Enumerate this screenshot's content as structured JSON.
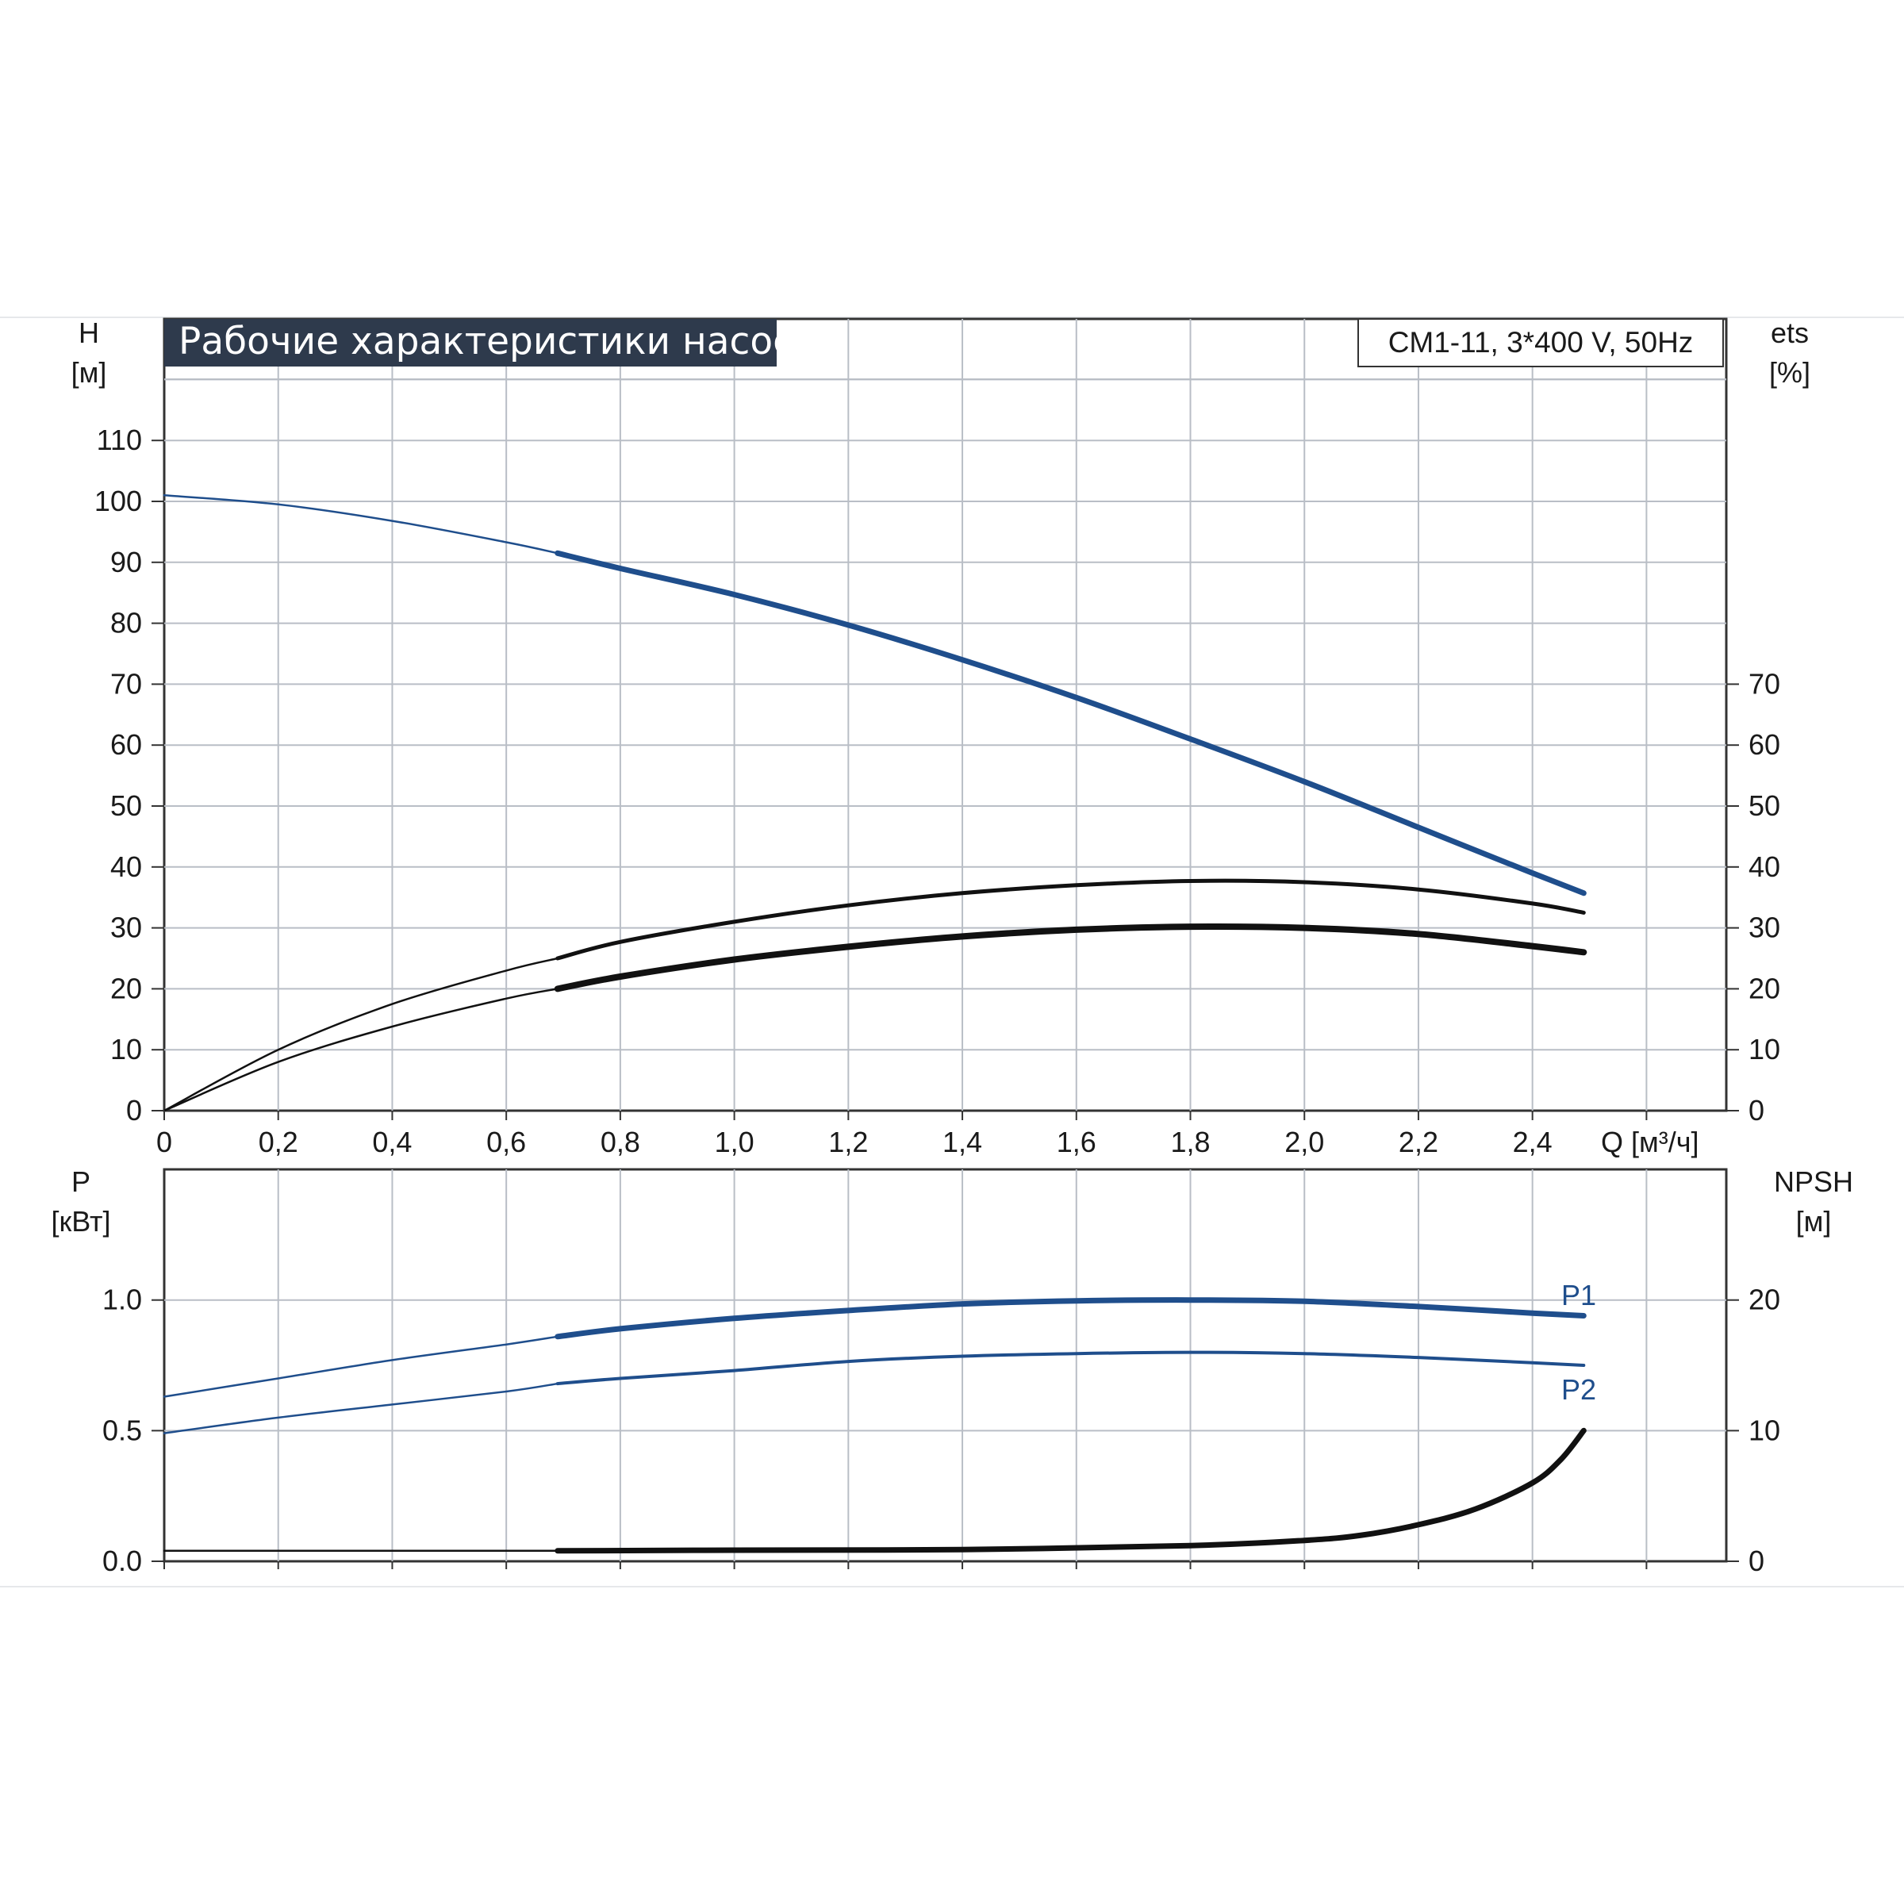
{
  "title": "Рабочие характеристики насоса",
  "model": "CM1-11, 3*400 V, 50Hz",
  "colors": {
    "blue": "#1f4e8c",
    "black": "#111111",
    "grid": "#b9bec6",
    "title_bg": "#2e3a4c"
  },
  "chart_data": [
    {
      "type": "line",
      "name": "top",
      "x_axis": {
        "label": "Q [м³/ч]",
        "range": [
          0,
          2.74
        ],
        "ticks": [
          "0",
          "0,2",
          "0,4",
          "0,6",
          "0,8",
          "1,0",
          "1,2",
          "1,4",
          "1,6",
          "1,8",
          "2,0",
          "2,2",
          "2,4"
        ]
      },
      "y_left": {
        "label_line1": "H",
        "label_line2": "[м]",
        "range": [
          0,
          120
        ],
        "ticks": [
          "0",
          "10",
          "20",
          "30",
          "40",
          "50",
          "60",
          "70",
          "80",
          "90",
          "100",
          "110"
        ]
      },
      "y_right": {
        "label_line1": "ets",
        "label_line2": "[%]",
        "range": [
          0,
          120
        ],
        "ticks": [
          "0",
          "10",
          "20",
          "30",
          "40",
          "50",
          "60",
          "70"
        ]
      },
      "grid": true,
      "series": [
        {
          "key": "H",
          "axis": "left",
          "color": "#1f4e8c",
          "x": [
            0,
            0.2,
            0.4,
            0.6,
            0.69,
            0.8,
            1.0,
            1.2,
            1.4,
            1.6,
            1.8,
            2.0,
            2.2,
            2.4,
            2.49
          ],
          "y": [
            101,
            99.5,
            96.8,
            93.3,
            91.5,
            89,
            84.7,
            79.7,
            74,
            67.8,
            61,
            54,
            46.5,
            39,
            35.7
          ],
          "bold_from": 0.69
        },
        {
          "key": "eta_thin",
          "axis": "right",
          "color": "#111111",
          "x": [
            0,
            0.2,
            0.4,
            0.6,
            0.69,
            0.8,
            1.0,
            1.2,
            1.4,
            1.6,
            1.8,
            2.0,
            2.2,
            2.4,
            2.49
          ],
          "y": [
            0,
            10,
            17.5,
            23,
            25,
            27.7,
            31,
            33.7,
            35.7,
            37,
            37.7,
            37.5,
            36.3,
            34,
            32.5
          ],
          "bold_from": 0.69
        },
        {
          "key": "eta_bold",
          "axis": "right",
          "color": "#111111",
          "x": [
            0,
            0.2,
            0.4,
            0.6,
            0.69,
            0.8,
            1.0,
            1.2,
            1.4,
            1.6,
            1.8,
            2.0,
            2.2,
            2.4,
            2.49
          ],
          "y": [
            0,
            8,
            13.8,
            18.4,
            20,
            22,
            24.8,
            26.9,
            28.6,
            29.7,
            30.2,
            30,
            29,
            27,
            26
          ],
          "bold_from": 0.69
        }
      ]
    },
    {
      "type": "line",
      "name": "bottom",
      "x_axis": {
        "range": [
          0,
          2.74
        ]
      },
      "y_left": {
        "label_line1": "P",
        "label_line2": "[кВт]",
        "range": [
          0,
          1.5
        ],
        "ticks": [
          "0.0",
          "0.5",
          "1.0"
        ]
      },
      "y_right": {
        "label_line1": "NPSH",
        "label_line2": "[м]",
        "range": [
          0,
          30
        ],
        "ticks": [
          "0",
          "10",
          "20"
        ]
      },
      "grid": true,
      "series": [
        {
          "key": "P1",
          "name": "P1",
          "axis": "left",
          "color": "#1f4e8c",
          "x": [
            0,
            0.2,
            0.4,
            0.6,
            0.69,
            0.8,
            1.0,
            1.2,
            1.4,
            1.6,
            1.8,
            2.0,
            2.2,
            2.4,
            2.49
          ],
          "y": [
            0.63,
            0.7,
            0.77,
            0.83,
            0.86,
            0.89,
            0.93,
            0.96,
            0.985,
            0.997,
            1.0,
            0.995,
            0.975,
            0.95,
            0.94
          ],
          "bold_from": 0.69
        },
        {
          "key": "P2",
          "name": "P2",
          "axis": "left",
          "color": "#1f4e8c",
          "x": [
            0,
            0.2,
            0.4,
            0.6,
            0.69,
            0.8,
            1.0,
            1.2,
            1.4,
            1.6,
            1.8,
            2.0,
            2.2,
            2.4,
            2.49
          ],
          "y": [
            0.49,
            0.55,
            0.6,
            0.65,
            0.68,
            0.7,
            0.73,
            0.765,
            0.785,
            0.795,
            0.8,
            0.795,
            0.78,
            0.76,
            0.75
          ],
          "bold_from": 0.69
        },
        {
          "key": "NPSH",
          "axis": "right",
          "color": "#111111",
          "x": [
            0,
            0.69,
            1.0,
            1.4,
            1.8,
            2.0,
            2.1,
            2.2,
            2.3,
            2.4,
            2.45,
            2.49
          ],
          "y": [
            0.8,
            0.8,
            0.85,
            0.9,
            1.2,
            1.6,
            2.0,
            2.8,
            4.0,
            6.0,
            7.8,
            10
          ],
          "bold_from": 0.69
        }
      ]
    }
  ]
}
